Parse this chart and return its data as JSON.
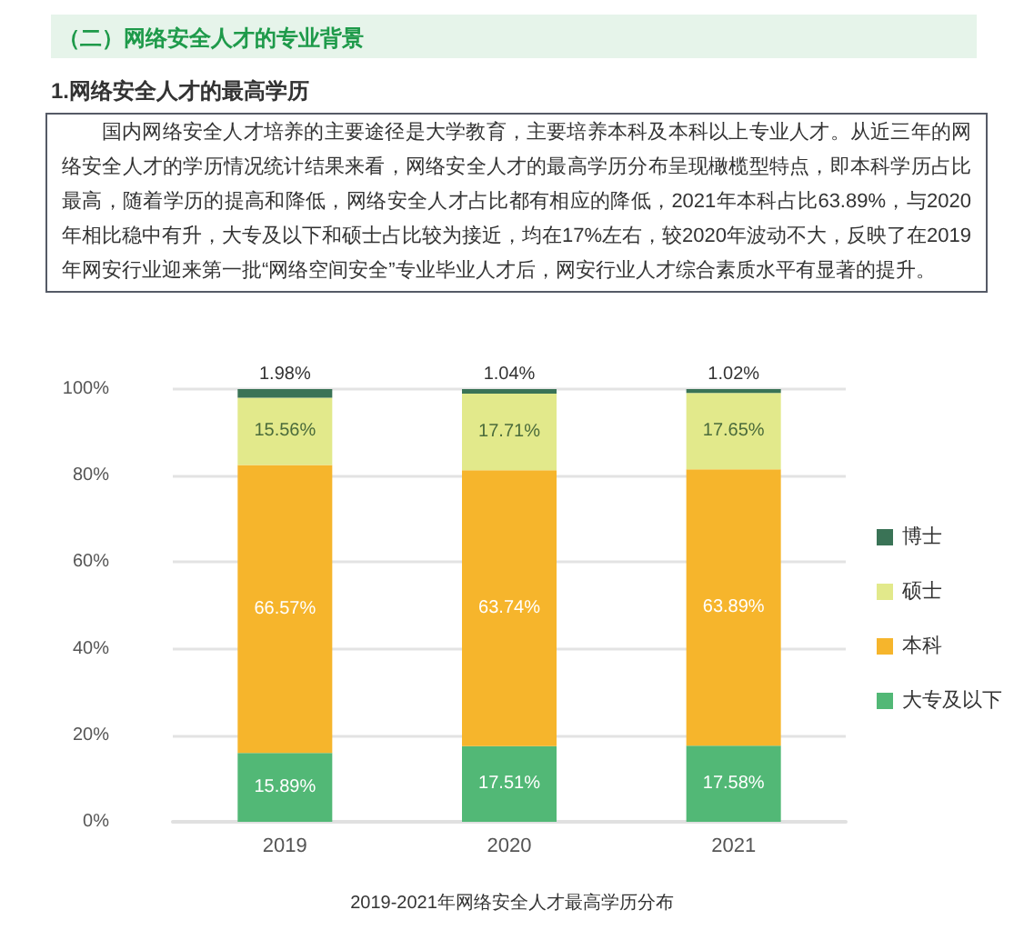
{
  "chart_data": {
    "type": "bar",
    "title": "2019-2021年网络安全人才最高学历分布",
    "annotations": [
      "（二）网络安全人才的专业背景",
      "1.网络安全人才的最高学历",
      "国内网络安全人才培养的主要途径是大学教育，主要培养本科及本科以上专业人才。从近三年的网络安全人才的学历情况统计结果来看，网络安全人才的最高学历分布呈现橄榄型特点，即本科学历占比最高，随着学历的提高和降低，网络安全人才占比都有相应的降低，2021年本科占比63.89%，与2020年相比稳中有升，大专及以下和硕士占比较为接近，均在17%左右，较2020年波动不大，反映了在2019年网安行业迎来第一批“网络空间安全”专业毕业人才后，网安行业人才综合素质水平有显著的提升。"
    ],
    "categories": [
      "2019",
      "2020",
      "2021"
    ],
    "stacked": true,
    "series": [
      {
        "name": "大专及以下",
        "color": "#52b876",
        "values": [
          15.89,
          17.51,
          17.58
        ],
        "value_labels": [
          "15.89%",
          "17.51%",
          "17.58%"
        ]
      },
      {
        "name": "本科",
        "color": "#f6b52c",
        "values": [
          66.57,
          63.74,
          63.89
        ],
        "value_labels": [
          "66.57%",
          "63.74%",
          "63.89%"
        ]
      },
      {
        "name": "硕士",
        "color": "#e2e98b",
        "values": [
          15.56,
          17.71,
          17.65
        ],
        "value_labels": [
          "15.56%",
          "17.71%",
          "17.65%"
        ]
      },
      {
        "name": "博士",
        "color": "#3a7356",
        "values": [
          1.98,
          1.04,
          1.02
        ],
        "value_labels": [
          "1.98%",
          "1.04%",
          "1.02%"
        ]
      }
    ],
    "ylim": [
      0,
      100
    ],
    "yticks": [
      {
        "value": 0,
        "label": "0%"
      },
      {
        "value": 20,
        "label": "20%"
      },
      {
        "value": 40,
        "label": "40%"
      },
      {
        "value": 60,
        "label": "60%"
      },
      {
        "value": 80,
        "label": "80%"
      },
      {
        "value": 100,
        "label": "100%"
      }
    ],
    "grid": "y",
    "legend": "right"
  }
}
